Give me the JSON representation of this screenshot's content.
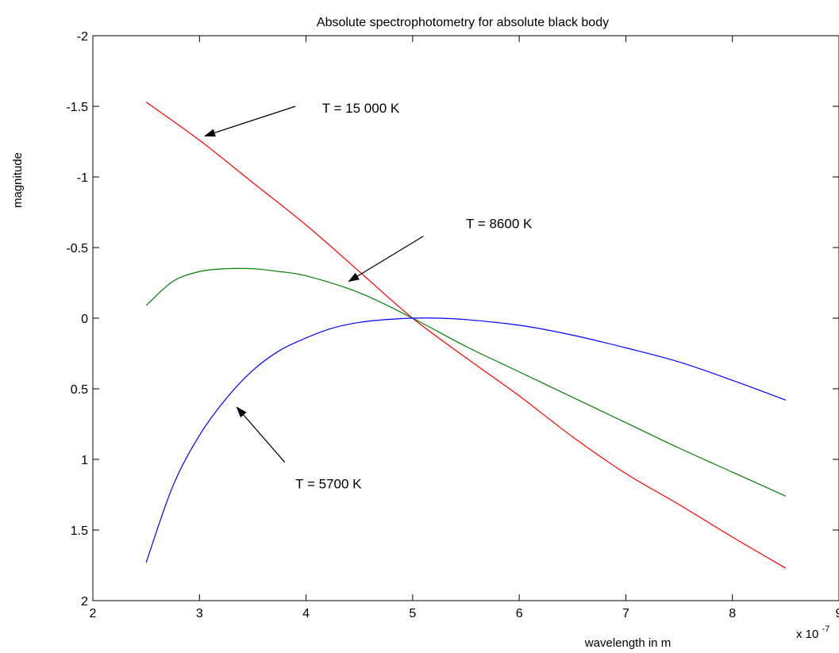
{
  "chart_data": {
    "type": "line",
    "title": "Absolute spectrophotometry for absolute black body",
    "xlabel": "wavelength in m",
    "ylabel": "magnitude",
    "x_multiplier": "x 10",
    "x_multiplier_exponent": "-7",
    "xlim": [
      2,
      9
    ],
    "ylim": [
      -2,
      2
    ],
    "y_reversed": true,
    "grid": false,
    "x_ticks": [
      2,
      3,
      4,
      5,
      6,
      7,
      8,
      9
    ],
    "x_tick_labels": [
      "2",
      "3",
      "4",
      "5",
      "6",
      "7",
      "8",
      "9"
    ],
    "y_ticks": [
      -2,
      -1.5,
      -1,
      -0.5,
      0,
      0.5,
      1,
      1.5,
      2
    ],
    "y_tick_labels": [
      "-2",
      "-1.5",
      "-1",
      "-0.5",
      "0",
      "0.5",
      "1",
      "1.5",
      "2"
    ],
    "series": [
      {
        "color": "#ff0000",
        "x": [
          2.5,
          3.0,
          3.5,
          4.0,
          4.5,
          5.0,
          5.5,
          6.0,
          6.5,
          7.0,
          7.5,
          8.0,
          8.5
        ],
        "y": [
          -1.53,
          -1.26,
          -0.96,
          -0.66,
          -0.33,
          0.0,
          0.28,
          0.55,
          0.84,
          1.1,
          1.32,
          1.55,
          1.77
        ]
      },
      {
        "color": "#008000",
        "x": [
          2.5,
          2.75,
          3.0,
          3.25,
          3.5,
          3.75,
          4.0,
          4.5,
          5.0,
          5.5,
          6.0,
          6.5,
          7.0,
          7.5,
          8.0,
          8.5
        ],
        "y": [
          -0.09,
          -0.26,
          -0.33,
          -0.35,
          -0.35,
          -0.33,
          -0.3,
          -0.18,
          0.0,
          0.2,
          0.38,
          0.56,
          0.74,
          0.92,
          1.09,
          1.26
        ]
      },
      {
        "color": "#0000ff",
        "x": [
          2.5,
          2.75,
          3.0,
          3.25,
          3.5,
          3.75,
          4.0,
          4.25,
          4.5,
          4.75,
          5.0,
          5.25,
          5.5,
          6.0,
          6.5,
          7.0,
          7.5,
          8.0,
          8.5
        ],
        "y": [
          1.73,
          1.19,
          0.83,
          0.57,
          0.37,
          0.23,
          0.14,
          0.07,
          0.03,
          0.01,
          0.0,
          0.0,
          0.01,
          0.05,
          0.12,
          0.21,
          0.31,
          0.44,
          0.58
        ]
      }
    ],
    "annotations": [
      {
        "text": "T = 15 000 K",
        "label_at": [
          4.15,
          -1.49
        ],
        "arrow_from": [
          3.9,
          -1.5
        ],
        "arrow_to": [
          3.05,
          -1.29
        ]
      },
      {
        "text": "T = 8600 K",
        "label_at": [
          5.5,
          -0.67
        ],
        "arrow_from": [
          5.1,
          -0.58
        ],
        "arrow_to": [
          4.4,
          -0.26
        ]
      },
      {
        "text": "T = 5700 K",
        "label_at": [
          3.9,
          1.17
        ],
        "arrow_from": [
          3.8,
          1.02
        ],
        "arrow_to": [
          3.35,
          0.63
        ]
      }
    ]
  }
}
